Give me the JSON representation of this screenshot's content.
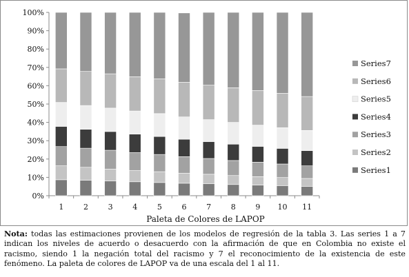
{
  "chart_data": {
    "type": "bar",
    "stacked": true,
    "percent_stacked": true,
    "categories": [
      "1",
      "2",
      "3",
      "4",
      "5",
      "6",
      "7",
      "8",
      "9",
      "10",
      "11"
    ],
    "xlabel": "Paleta de Colores de LAPOP",
    "ylabel": "",
    "ylim": [
      0,
      100
    ],
    "yticks": [
      "0%",
      "10%",
      "20%",
      "30%",
      "40%",
      "50%",
      "60%",
      "70%",
      "80%",
      "90%",
      "100%"
    ],
    "legend_position": "right",
    "grid": false,
    "series": [
      {
        "name": "Series1",
        "color": "#7a7a7a",
        "values": [
          8.7,
          8.4,
          8.0,
          7.6,
          7.2,
          6.8,
          6.5,
          6.1,
          5.8,
          5.5,
          5.1
        ]
      },
      {
        "name": "Series2",
        "color": "#c4c4c4",
        "values": [
          7.6,
          7.1,
          6.5,
          6.1,
          5.9,
          5.5,
          5.2,
          4.9,
          4.6,
          4.4,
          4.3
        ]
      },
      {
        "name": "Series3",
        "color": "#a2a2a2",
        "values": [
          10.5,
          10.4,
          10.3,
          9.8,
          9.4,
          9.0,
          8.6,
          8.2,
          7.9,
          7.4,
          6.9
        ]
      },
      {
        "name": "Series4",
        "color": "#3c3c3c",
        "values": [
          11.0,
          10.3,
          10.2,
          10.1,
          9.8,
          9.5,
          9.2,
          8.9,
          8.6,
          8.5,
          8.3
        ]
      },
      {
        "name": "Series5",
        "color": "#eeeeee",
        "values": [
          13.1,
          13.0,
          12.8,
          12.6,
          12.5,
          12.2,
          12.0,
          11.9,
          11.6,
          11.3,
          11.0
        ]
      },
      {
        "name": "Series6",
        "color": "#b8b8b8",
        "values": [
          18.3,
          18.6,
          18.7,
          18.7,
          19.0,
          18.9,
          18.8,
          18.9,
          18.9,
          18.8,
          18.5
        ]
      },
      {
        "name": "Series7",
        "color": "#979797",
        "values": [
          30.8,
          32.2,
          33.5,
          35.1,
          36.2,
          37.8,
          39.7,
          41.1,
          42.6,
          44.1,
          45.9
        ]
      }
    ]
  },
  "note": {
    "label": "Nota:",
    "text": " todas las estimaciones provienen de los modelos de regresión de la tabla 3. Las series 1 a 7 indican los niveles de acuerdo o desacuerdo con la afirmación de que en Colombia no existe el racismo, siendo 1 la negación total del racismo y 7 el reconocimiento de la existencia de este fenómeno. La paleta de colores de LAPOP va de una escala del 1 al 11."
  }
}
